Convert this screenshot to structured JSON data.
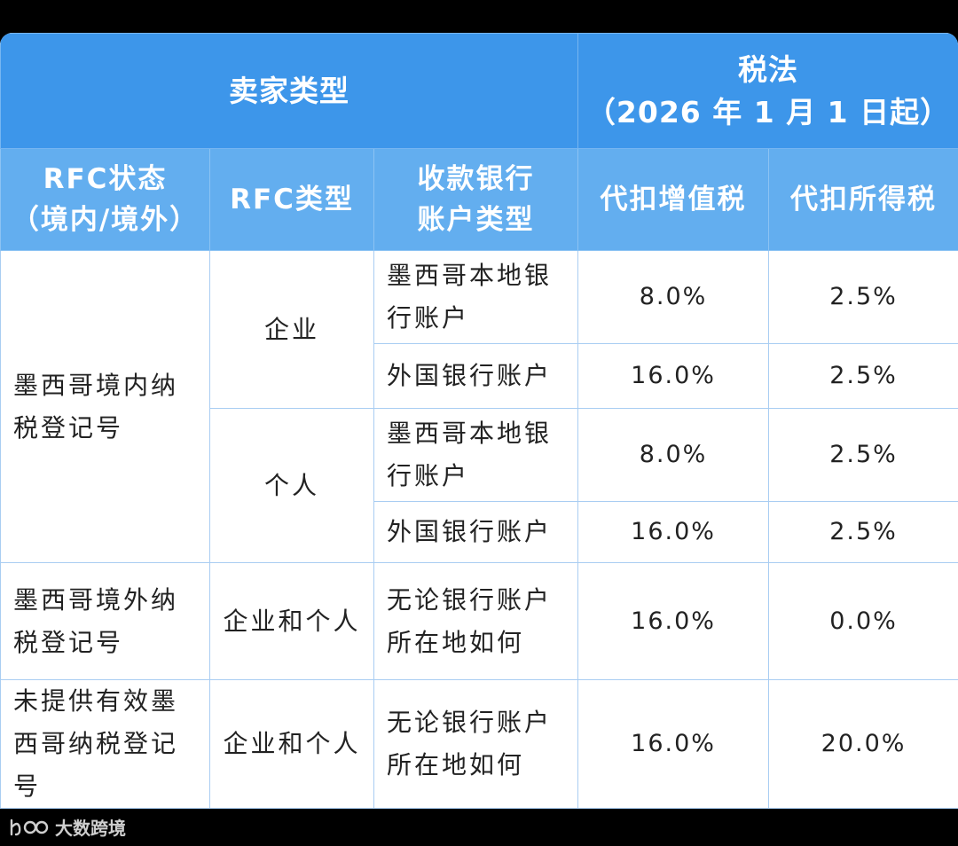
{
  "header": {
    "seller_type": "卖家类型",
    "tax_law_title": "税法",
    "tax_law_date": "（2026 年 1 月 1 日起）"
  },
  "columns": {
    "rfc_status": "RFC状态\n（境内/境外）",
    "rfc_type": "RFC类型",
    "bank_account_type": "收款银行\n账户类型",
    "vat": "代扣增值税",
    "income_tax": "代扣所得税"
  },
  "rows": [
    {
      "rfc_status": "墨西哥境内纳税登记号",
      "rfc_type": "企业",
      "bank": "墨西哥本地银行账户",
      "vat": "8.0%",
      "income": "2.5%"
    },
    {
      "rfc_status": "墨西哥境内纳税登记号",
      "rfc_type": "企业",
      "bank": "外国银行账户",
      "vat": "16.0%",
      "income": "2.5%"
    },
    {
      "rfc_status": "墨西哥境内纳税登记号",
      "rfc_type": "个人",
      "bank": "墨西哥本地银行账户",
      "vat": "8.0%",
      "income": "2.5%"
    },
    {
      "rfc_status": "墨西哥境内纳税登记号",
      "rfc_type": "个人",
      "bank": "外国银行账户",
      "vat": "16.0%",
      "income": "2.5%"
    },
    {
      "rfc_status": "墨西哥境外纳税登记号",
      "rfc_type": "企业和个人",
      "bank": "无论银行账户所在地如何",
      "vat": "16.0%",
      "income": "0.0%"
    },
    {
      "rfc_status": "未提供有效墨西哥纳税登记号",
      "rfc_type": "企业和个人",
      "bank": "无论银行账户所在地如何",
      "vat": "16.0%",
      "income": "20.0%"
    }
  ],
  "watermark": {
    "text": "大数跨境",
    "icon": "100-logo-icon"
  },
  "colors": {
    "header_dark": "#3d96ea",
    "header_light": "#63aeef",
    "border": "#a9cdf2"
  }
}
